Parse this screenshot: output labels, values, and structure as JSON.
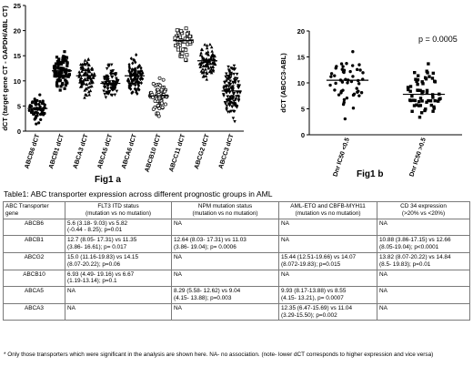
{
  "chart_data": [
    {
      "type": "scatter",
      "caption": "Fig1 a",
      "ylabel": "dCT (target gene CT - GAPDH/ABL CT)",
      "ylim": [
        0,
        25
      ],
      "yticks": [
        0,
        5,
        10,
        15,
        20,
        25
      ],
      "categories": [
        "ABCB6 dCT",
        "ABCB1 dCT",
        "ABCA3 dCT",
        "ABCA5 dCT",
        "ABCA6 dCT",
        "ABCB10 dCT",
        "ABCC11 dCT",
        "ABCG2 dCT",
        "ABCC3 dCT"
      ],
      "series": [
        {
          "median": 4.5,
          "low": 1.0,
          "high": 8.2,
          "marker": "circle-filled",
          "n": 60
        },
        {
          "median": 12.0,
          "low": 6.5,
          "high": 17.0,
          "marker": "square-filled",
          "n": 90
        },
        {
          "median": 11.0,
          "low": 6.0,
          "high": 15.5,
          "marker": "triangle-up",
          "n": 90
        },
        {
          "median": 9.5,
          "low": 5.5,
          "high": 14.5,
          "marker": "triangle-down",
          "n": 90
        },
        {
          "median": 11.0,
          "low": 6.0,
          "high": 15.5,
          "marker": "diamond",
          "n": 90
        },
        {
          "median": 7.0,
          "low": 1.0,
          "high": 11.5,
          "marker": "circle-open",
          "n": 60
        },
        {
          "median": 18.0,
          "low": 11.5,
          "high": 21.5,
          "marker": "square-open",
          "n": 50
        },
        {
          "median": 14.0,
          "low": 9.5,
          "high": 19.5,
          "marker": "triangle-up",
          "n": 90
        },
        {
          "median": 8.0,
          "low": 0.0,
          "high": 15.0,
          "marker": "triangle-down",
          "n": 130
        }
      ]
    },
    {
      "type": "scatter",
      "caption": "Fig1 b",
      "ylabel": "dCT (ABCC3-ABL)",
      "ylim": [
        0,
        20
      ],
      "yticks": [
        0,
        5,
        10,
        15,
        20
      ],
      "categories": [
        "Dnr IC50 <0.5",
        "Dnr IC50 >0.5"
      ],
      "annotation": "p = 0.0005",
      "series": [
        {
          "median": 10.5,
          "low": 2.0,
          "high": 18.0,
          "marker": "circle-filled",
          "n": 50
        },
        {
          "median": 7.8,
          "low": 1.5,
          "high": 15.5,
          "marker": "square-filled",
          "n": 60
        }
      ]
    }
  ],
  "table_title": "Table1:  ABC transporter expression across different prognostic groups in AML",
  "table": {
    "headers": [
      [
        "ABC Transporter",
        "gene"
      ],
      [
        "FLT3 ITD status",
        "(mutation vs no mutation)"
      ],
      [
        "NPM mutation status",
        "(mutation vs no mutation)"
      ],
      [
        "AML-ETO and CBFB-MYH11",
        "(mutation vs no mutation)"
      ],
      [
        "CD 34 expression",
        "(>20% vs <20%)"
      ]
    ],
    "rows": [
      {
        "gene": "ABCB6",
        "flt3": [
          "5.6 (3.18- 9.03) vs 5.82",
          "(-0.44 - 8.25); p=0.01"
        ],
        "npm": [
          "NA"
        ],
        "aml": [
          "NA"
        ],
        "cd34": [
          "NA"
        ]
      },
      {
        "gene": "ABCB1",
        "flt3": [
          "12.7 (8.05- 17.31) vs 11.35",
          "(3.86- 16.61); p= 0.017"
        ],
        "npm": [
          "12.64 (8.03- 17.31) vs 11.03",
          "(3.86- 19.04); p= 0.0006"
        ],
        "aml": [
          "NA"
        ],
        "cd34": [
          "10.88 (3.86-17.15) vs 12.66",
          "(8.05-19.04); p<0.0001"
        ]
      },
      {
        "gene": "ABCG2",
        "flt3": [
          "15.0 (11.16-19.83) vs 14.15",
          "(8.07-20.22); p=0.06"
        ],
        "npm": [
          "NA"
        ],
        "aml": [
          "15.44 (12.51-19.66) vs 14.07",
          "(8.072-19.83); p=0.015"
        ],
        "cd34": [
          "13.82 (8.07-20.22) vs 14.84",
          "(8.5- 19.83); p=0.01"
        ]
      },
      {
        "gene": "ABCB10",
        "flt3": [
          "6.93 (4.49- 19.16) vs 6.67",
          "(1.19-13.14); p=0.1"
        ],
        "npm": [
          "NA"
        ],
        "aml": [
          "NA"
        ],
        "cd34": [
          "NA"
        ]
      },
      {
        "gene": "ABCA5",
        "flt3": [
          "NA"
        ],
        "npm": [
          "8.29 (5.58- 12.62) vs 9.04",
          "(4.15- 13.88); p=0.003"
        ],
        "aml": [
          "9.93 (8.17-13.88) vs 8.55",
          "(4.15- 13.21), p= 0.0007"
        ],
        "cd34": [
          "NA"
        ]
      },
      {
        "gene": "ABCA3",
        "flt3": [
          "NA"
        ],
        "npm": [
          "NA"
        ],
        "aml": [
          "12.35 (6.47-15.69) vs 11.04",
          "(3.29-15.50); p=0.002"
        ],
        "cd34": [
          "NA"
        ]
      }
    ]
  },
  "footnote": "* Only those transporters which were significant in the analysis are shown here. NA- no association. (note- lower dCT corresponds to higher expression and vice versa)"
}
